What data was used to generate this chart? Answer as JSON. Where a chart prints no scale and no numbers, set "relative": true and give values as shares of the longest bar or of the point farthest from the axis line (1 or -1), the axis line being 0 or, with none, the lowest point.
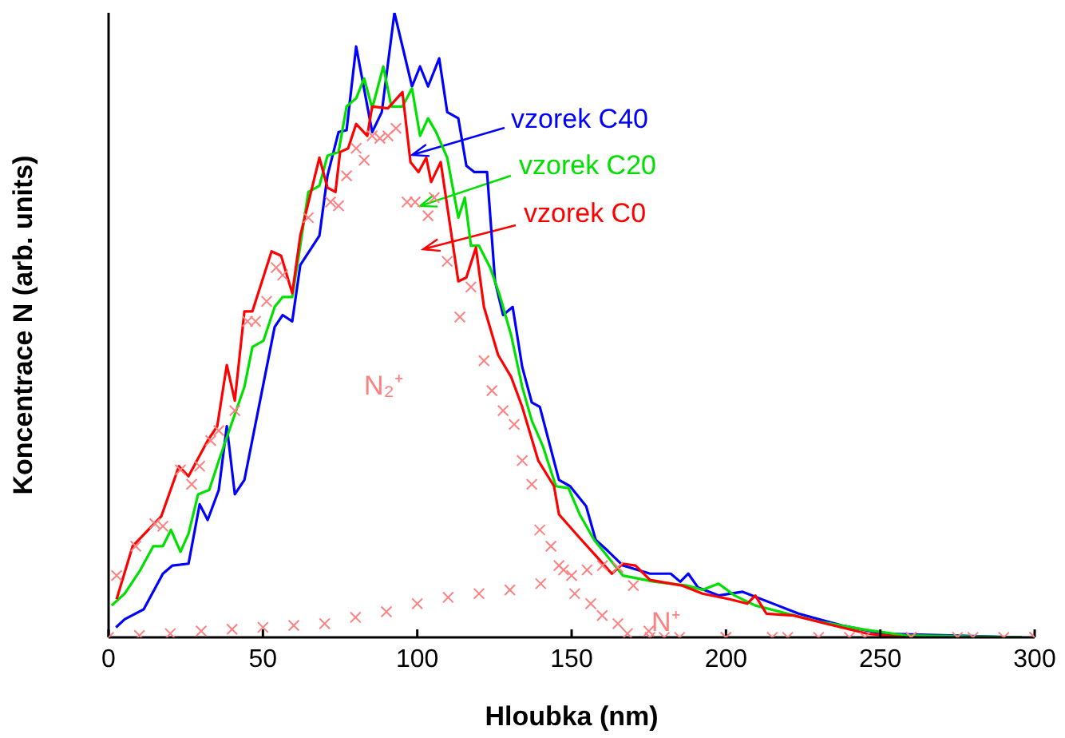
{
  "chart_data": {
    "type": "line",
    "xlabel": "Hloubka (nm)",
    "ylabel": "Koncentrace N (arb. units)",
    "relative": true,
    "xlim": [
      0,
      300
    ],
    "xticks": [
      0,
      50,
      100,
      150,
      200,
      250,
      300
    ],
    "grid": false,
    "legend": false,
    "series": [
      {
        "name": "vzorek C40",
        "color": "#0000ff",
        "x": [
          2.4,
          5.2,
          11.4,
          17.6,
          20.7,
          25.9,
          29.5,
          32.1,
          35.7,
          38.3,
          40.9,
          44,
          53.8,
          56.4,
          59.5,
          62.1,
          68.3,
          70.9,
          74.5,
          77.1,
          80.2,
          85.4,
          88.5,
          92.6,
          98.3,
          100.9,
          103.5,
          107.1,
          109.7,
          113.3,
          115.9,
          118.5,
          122.6,
          125.2,
          127.8,
          130.9,
          134,
          137.1,
          139.7,
          145.9,
          149.5,
          154.7,
          157.8,
          161.4,
          166.6,
          175.4,
          182.1,
          185.2,
          187.8,
          190.9,
          197.6,
          205.4,
          216.8,
          223.5,
          237.5,
          250.9,
          295.9
        ],
        "values": [
          0.016,
          0.029,
          0.045,
          0.102,
          0.115,
          0.118,
          0.213,
          0.188,
          0.236,
          0.338,
          0.229,
          0.252,
          0.497,
          0.516,
          0.506,
          0.596,
          0.643,
          0.739,
          0.809,
          0.812,
          0.946,
          0.809,
          0.841,
          1.0,
          0.882,
          0.914,
          0.882,
          0.927,
          0.841,
          0.831,
          0.755,
          0.745,
          0.745,
          0.57,
          0.516,
          0.529,
          0.433,
          0.376,
          0.369,
          0.252,
          0.242,
          0.21,
          0.156,
          0.14,
          0.115,
          0.102,
          0.102,
          0.089,
          0.102,
          0.08,
          0.067,
          0.073,
          0.051,
          0.038,
          0.019,
          0.006,
          0
        ]
      },
      {
        "name": "vzorek C20",
        "color": "#00e000",
        "x": [
          1,
          5.2,
          10.3,
          14.5,
          17.6,
          20.2,
          23.3,
          25.9,
          29,
          32.6,
          35.7,
          40.9,
          44,
          46.6,
          50.2,
          53.8,
          56.4,
          59.5,
          62.1,
          64.7,
          68.3,
          70.9,
          74.5,
          77.1,
          80.2,
          82.8,
          85.4,
          89,
          91.6,
          95.2,
          98.3,
          100.9,
          103.5,
          106.1,
          109.7,
          113.3,
          115.4,
          117.4,
          120,
          123.6,
          126.7,
          130.4,
          134,
          137.1,
          140.7,
          144.9,
          149,
          152.6,
          157.3,
          161.4,
          166.6,
          176.9,
          187.3,
          192.4,
          197.6,
          202.8,
          209.5,
          219.9,
          230.2,
          244.2,
          258.1,
          295.9
        ],
        "values": [
          0.051,
          0.07,
          0.108,
          0.146,
          0.146,
          0.172,
          0.137,
          0.166,
          0.229,
          0.236,
          0.283,
          0.357,
          0.401,
          0.465,
          0.475,
          0.529,
          0.545,
          0.545,
          0.627,
          0.713,
          0.723,
          0.771,
          0.777,
          0.85,
          0.863,
          0.895,
          0.847,
          0.914,
          0.85,
          0.85,
          0.879,
          0.803,
          0.831,
          0.809,
          0.768,
          0.672,
          0.704,
          0.627,
          0.627,
          0.592,
          0.548,
          0.484,
          0.401,
          0.347,
          0.306,
          0.242,
          0.239,
          0.197,
          0.156,
          0.131,
          0.099,
          0.089,
          0.083,
          0.076,
          0.086,
          0.067,
          0.051,
          0.038,
          0.025,
          0.013,
          0.003,
          0
        ]
      },
      {
        "name": "vzorek C0",
        "color": "#ff0000",
        "x": [
          2.6,
          7.8,
          14,
          17.1,
          22.8,
          25.9,
          32.1,
          35.2,
          38.3,
          40.9,
          44,
          46.6,
          52.8,
          55.9,
          59.5,
          62.1,
          68.3,
          70.9,
          73.5,
          75,
          77.6,
          80.2,
          83.8,
          85.4,
          90.5,
          95.2,
          97.8,
          100.4,
          102.9,
          104.5,
          107.6,
          113.3,
          115.9,
          119,
          121.6,
          126.2,
          130.4,
          134,
          139.2,
          144.3,
          145.9,
          152.1,
          157.8,
          163,
          166.6,
          170.7,
          175.4,
          185.7,
          192.4,
          201.2,
          206.9,
          209.5,
          213.1,
          221.9,
          232.3,
          245.7,
          258.1
        ],
        "values": [
          0.061,
          0.146,
          0.178,
          0.194,
          0.274,
          0.258,
          0.315,
          0.338,
          0.436,
          0.379,
          0.522,
          0.522,
          0.618,
          0.611,
          0.551,
          0.643,
          0.768,
          0.72,
          0.713,
          0.777,
          0.783,
          0.822,
          0.803,
          0.85,
          0.847,
          0.873,
          0.761,
          0.745,
          0.768,
          0.729,
          0.761,
          0.57,
          0.576,
          0.624,
          0.529,
          0.452,
          0.417,
          0.369,
          0.283,
          0.242,
          0.197,
          0.162,
          0.131,
          0.102,
          0.118,
          0.115,
          0.092,
          0.083,
          0.07,
          0.061,
          0.054,
          0.067,
          0.038,
          0.035,
          0.022,
          0.006,
          0
        ]
      },
      {
        "name": "N₂⁺",
        "type": "scatter",
        "marker": "cross",
        "color": "#ff8080",
        "x": [
          2.6,
          8.8,
          15,
          17.6,
          23.3,
          26.9,
          29.5,
          33.1,
          35.7,
          40.9,
          45,
          47.6,
          51.2,
          54.3,
          56.4,
          64.7,
          71.9,
          74.5,
          77.1,
          80.2,
          82.8,
          85.4,
          87.9,
          90.5,
          93.1,
          96.7,
          99.3,
          103.5,
          105.5,
          109.7,
          113.8,
          117.4,
          121.6,
          124.2,
          127.8,
          131.4,
          134,
          137.1,
          139.7,
          143.3,
          145.9,
          147.4,
          151,
          156.2,
          159.9,
          165,
          168.1,
          175.4,
          185,
          200,
          215,
          230,
          245,
          260,
          275,
          290,
          300
        ],
        "values": [
          0.099,
          0.146,
          0.182,
          0.178,
          0.268,
          0.245,
          0.274,
          0.315,
          0.331,
          0.363,
          0.506,
          0.506,
          0.538,
          0.592,
          0.58,
          0.672,
          0.697,
          0.691,
          0.739,
          0.783,
          0.764,
          0.803,
          0.799,
          0.803,
          0.815,
          0.697,
          0.697,
          0.675,
          0.704,
          0.602,
          0.513,
          0.561,
          0.443,
          0.395,
          0.363,
          0.341,
          0.283,
          0.245,
          0.172,
          0.146,
          0.115,
          0.108,
          0.07,
          0.054,
          0.035,
          0.022,
          0.006,
          0,
          0,
          0,
          0,
          0,
          0,
          0,
          0,
          0,
          0
        ]
      },
      {
        "name": "N⁺",
        "type": "scatter",
        "marker": "cross",
        "color": "#ff8080",
        "x": [
          0,
          10,
          20,
          30,
          40,
          50,
          60,
          70,
          80,
          90,
          100,
          110,
          120,
          130,
          140,
          150,
          155,
          160,
          165,
          170,
          175,
          180,
          200,
          220,
          240,
          260,
          280,
          300
        ],
        "values": [
          0,
          0.003,
          0.006,
          0.01,
          0.013,
          0.016,
          0.019,
          0.022,
          0.032,
          0.041,
          0.054,
          0.064,
          0.07,
          0.076,
          0.086,
          0.099,
          0.108,
          0.115,
          0.112,
          0.083,
          0.01,
          0,
          0,
          0,
          0,
          0,
          0,
          0
        ]
      }
    ]
  }
}
